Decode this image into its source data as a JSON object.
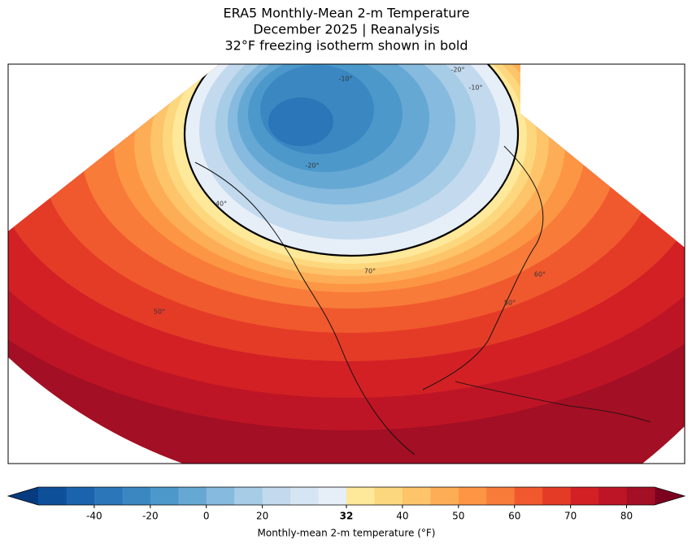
{
  "header": {
    "title": [
      "ERA5 Monthly-Mean 2-m Temperature",
      "December 2025 | Reanalysis",
      "32°F freezing isotherm shown in bold"
    ]
  },
  "map": {
    "contour_labels": [
      "-10°",
      "-20°",
      "-10°",
      "-20°",
      "40°",
      "50°",
      "60°",
      "50°",
      "70°"
    ]
  },
  "colorbar": {
    "boundaries": [
      -60,
      -50,
      -40,
      -30,
      -20,
      -10,
      0,
      10,
      20,
      24,
      28,
      32,
      36,
      40,
      45,
      50,
      55,
      60,
      65,
      70,
      75,
      80,
      85
    ],
    "colors": [
      "#0d4f99",
      "#1b63ad",
      "#2a76b8",
      "#3a87c2",
      "#4c98cb",
      "#66a8d4",
      "#86bade",
      "#a6cce6",
      "#c2d9ee",
      "#d6e5f3",
      "#e6eef8",
      "#fee899",
      "#fdd77e",
      "#fdc46a",
      "#fdad55",
      "#fc9645",
      "#f87b39",
      "#f0592d",
      "#e43b27",
      "#d22025",
      "#be1526",
      "#a30f24"
    ],
    "extend_colors": [
      "#063b80",
      "#7d0020"
    ],
    "ticks": [
      -40,
      -20,
      0,
      20,
      32,
      40,
      50,
      60,
      70,
      80
    ],
    "bold_tick": 32,
    "label": "Monthly-mean 2-m temperature (°F)"
  }
}
